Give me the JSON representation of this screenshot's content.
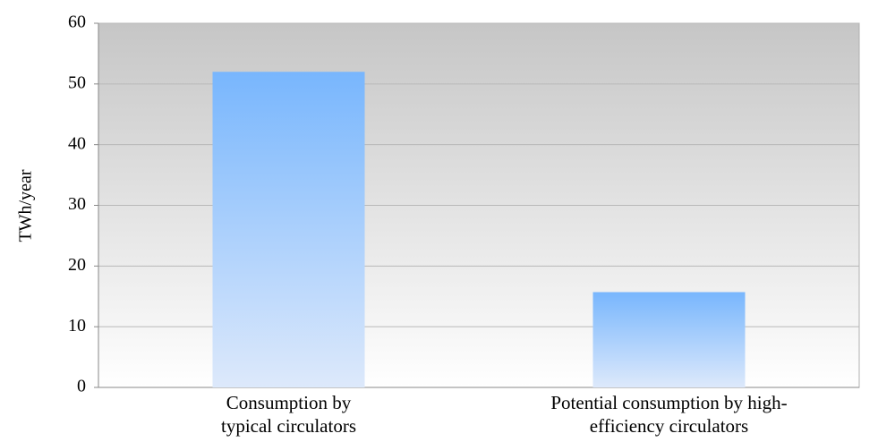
{
  "chart_data": {
    "type": "bar",
    "y_label": "TWh/year",
    "categories": [
      "Consumption by typical circulators",
      "Potential consumption by high-efficiency circulators"
    ],
    "values": [
      52,
      15.7
    ],
    "color": "#78b6fd",
    "ylim": [
      0,
      60
    ],
    "yticks": [
      0,
      10,
      20,
      30,
      40,
      50,
      60
    ],
    "grid": true
  }
}
